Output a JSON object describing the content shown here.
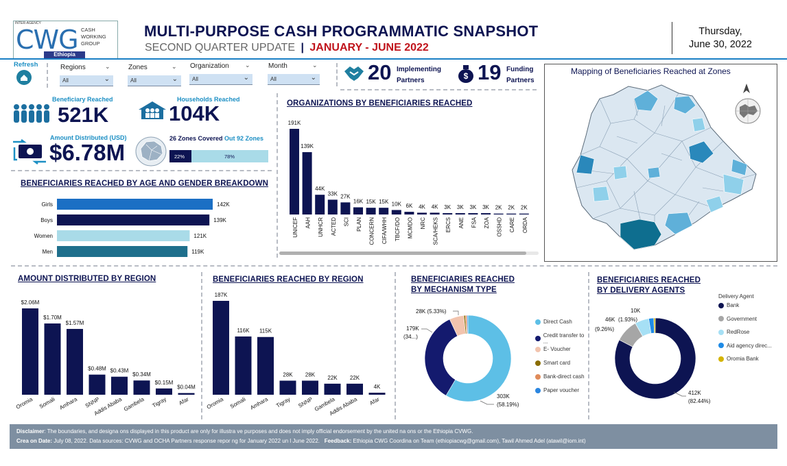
{
  "header": {
    "logo": {
      "main": "CWG",
      "line1": "CASH",
      "line2": "WORKING",
      "line3": "GROUP",
      "country": "Ethiopia",
      "top": "INTER-AGENCY"
    },
    "title": "MULTI-PURPOSE CASH PROGRAMMATIC SNAPSHOT",
    "subtitle": "SECOND QUARTER UPDATE",
    "separator": "|",
    "period": "JANUARY - JUNE 2022",
    "date_day": "Thursday,",
    "date": "June 30, 2022"
  },
  "filters": {
    "refresh": "Refresh",
    "items": [
      {
        "label": "Regions",
        "value": "All"
      },
      {
        "label": "Zones",
        "value": "All"
      },
      {
        "label": "Organization",
        "value": "All"
      },
      {
        "label": "Month",
        "value": "All"
      }
    ]
  },
  "partners": {
    "implementing_count": "20",
    "implementing_label1": "Implementing",
    "implementing_label2": "Partners",
    "funding_count": "19",
    "funding_label1": "Funding",
    "funding_label2": "Partners"
  },
  "kpis": {
    "beneficiary_label": "Beneficiary Reached",
    "beneficiary_value": "521K",
    "households_label": "Households Reached",
    "households_value": "104K",
    "amount_label": "Amount Distributed (USD)",
    "amount_value": "$6.78M",
    "zones_covered": "26 Zones Covered",
    "zones_total": "Out 92 Zones",
    "zones_covered_pct": "22%",
    "zones_remaining_pct": "78%",
    "zones_covered_fraction": 0.22
  },
  "map": {
    "title": "Mapping of Beneficiaries Reached at Zones"
  },
  "sections": {
    "orgs": "ORGANIZATIONS BY BENEFICIARIES REACHED",
    "age_gender": "BENEFICIARIES REACHED BY AGE AND GENDER BREAKDOWN",
    "amount_region": "AMOUNT DISTRIBUTED BY REGION",
    "benef_region": "BENEFICIARIES REACHED BY REGION",
    "mechanism_1": "BENEFICIARIES REACHED",
    "mechanism_2": "BY MECHANISM TYPE",
    "delivery_1": "BENEFICIARIES REACHED",
    "delivery_2": "BY DELIVERY AGENTS"
  },
  "chart_data": [
    {
      "id": "orgs",
      "type": "bar",
      "categories": [
        "UNICEF",
        "AAH",
        "UNHCR",
        "ACTED",
        "SCI",
        "PLAN",
        "CONCERN",
        "CIFA/WHH",
        "TBCF/DO",
        "MCMDO",
        "NRC",
        "SCA/HEKS",
        "ERCS",
        "ANE",
        "FSA",
        "ZOA",
        "OSSHD",
        "CARE",
        "ORDA"
      ],
      "values": [
        191,
        139,
        44,
        33,
        27,
        16,
        15,
        15,
        10,
        6,
        4,
        4,
        3,
        3,
        3,
        3,
        2,
        2,
        2
      ],
      "labels": [
        "191K",
        "139K",
        "44K",
        "33K",
        "27K",
        "16K",
        "15K",
        "15K",
        "10K",
        "6K",
        "4K",
        "4K",
        "3K",
        "3K",
        "3K",
        "3K",
        "2K",
        "2K",
        "2K"
      ],
      "unit": "K",
      "color": "#0d1452"
    },
    {
      "id": "age_gender",
      "type": "bar",
      "orientation": "horizontal",
      "categories": [
        "Girls",
        "Boys",
        "Women",
        "Men"
      ],
      "values": [
        142,
        139,
        121,
        119
      ],
      "labels": [
        "142K",
        "139K",
        "121K",
        "119K"
      ],
      "colors": [
        "#1b6fc4",
        "#0d1452",
        "#a9dbe8",
        "#1e6f8c"
      ]
    },
    {
      "id": "amount_region",
      "type": "bar",
      "categories": [
        "Oromia",
        "Somali",
        "Amhara",
        "SNNP",
        "Addis Ababa",
        "Gambela",
        "Tigray",
        "Afar"
      ],
      "values": [
        2.06,
        1.7,
        1.57,
        0.48,
        0.43,
        0.34,
        0.15,
        0.04
      ],
      "labels": [
        "$2.06M",
        "$1.70M",
        "$1.57M",
        "$0.48M",
        "$0.43M",
        "$0.34M",
        "$0.15M",
        "$0.04M"
      ],
      "color": "#0d1452"
    },
    {
      "id": "benef_region",
      "type": "bar",
      "categories": [
        "Oromia",
        "Somali",
        "Amhara",
        "Tigray",
        "SNNP",
        "Gambela",
        "Addis Ababa",
        "Afar"
      ],
      "values": [
        187,
        116,
        115,
        28,
        28,
        22,
        22,
        4
      ],
      "labels": [
        "187K",
        "116K",
        "115K",
        "28K",
        "28K",
        "22K",
        "22K",
        "4K"
      ],
      "color": "#0d1452"
    },
    {
      "id": "mechanism",
      "type": "pie",
      "donut": true,
      "series": [
        {
          "name": "Direct Cash",
          "value": 303,
          "color": "#5dbfe6"
        },
        {
          "name": "Credit transfer to ...",
          "value": 179,
          "color": "#141a6e"
        },
        {
          "name": "E- Voucher",
          "value": 28,
          "color": "#f2c4ae"
        },
        {
          "name": "Smart card",
          "value": 3,
          "color": "#8a6d00"
        },
        {
          "name": "Bank-direct cash",
          "value": 3,
          "color": "#e08b5a"
        },
        {
          "name": "Paper voucher",
          "value": 2,
          "color": "#2b86e0"
        }
      ],
      "callouts": [
        "303K",
        "(58.19%)",
        "179K",
        "(34...)",
        "28K (5.33%)"
      ]
    },
    {
      "id": "delivery",
      "type": "pie",
      "donut": true,
      "legend_title": "Delivery Agent",
      "series": [
        {
          "name": "Bank",
          "value": 412,
          "color": "#0d1452"
        },
        {
          "name": "Government",
          "value": 46,
          "color": "#a6a6a6"
        },
        {
          "name": "RedRose",
          "value": 28,
          "color": "#a6e0f5"
        },
        {
          "name": "Aid agency direc...",
          "value": 10,
          "color": "#1f8be6"
        },
        {
          "name": "Oromia Bank",
          "value": 3,
          "color": "#d4b400"
        }
      ],
      "callouts": [
        "412K",
        "(82.44%)",
        "46K",
        "(9.26%)",
        "10K",
        "(1.93%)"
      ]
    }
  ],
  "footer": {
    "disclaimer_label": "Disclaimer",
    "disclaimer": ": The boundaries, and designa  ons displayed in this product are only for illustra  ve purposes and does not imply official endorsement by the united na  ons or the Ethiopia CVWG.",
    "created_label": "Crea  on Date:",
    "created": " July 08, 2022. Data sources: CVWG and OCHA Partners response repor  ng for January 2022 un  l June 2022.",
    "feedback_label": "Feedback:",
    "feedback": " Ethiopia CWG Coordina  on Team (ethiopiacwg@gmail.com), Tawil Ahmed Adel (atawil@iom.int)"
  }
}
